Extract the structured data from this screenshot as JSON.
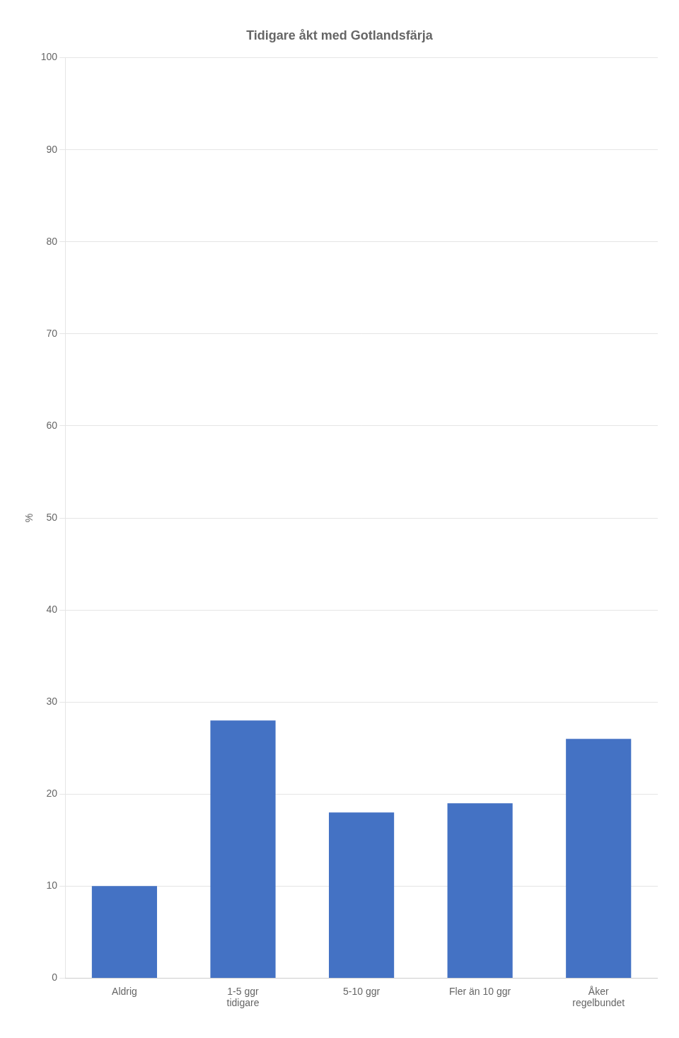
{
  "chart_data": {
    "type": "bar",
    "title": "Tidigare åkt med Gotlandsfärja",
    "y_label": "%",
    "categories": [
      "Aldrig",
      "1-5 ggr\ntidigare",
      "5-10 ggr",
      "Fler än 10 ggr",
      "Åker\nregelbundet"
    ],
    "values": [
      10,
      28,
      18,
      19,
      26
    ],
    "color": "#4472C4",
    "ylim": [
      0,
      100
    ],
    "yticks": [
      0,
      10,
      20,
      30,
      40,
      50,
      60,
      70,
      80,
      90,
      100
    ],
    "grid": true
  }
}
